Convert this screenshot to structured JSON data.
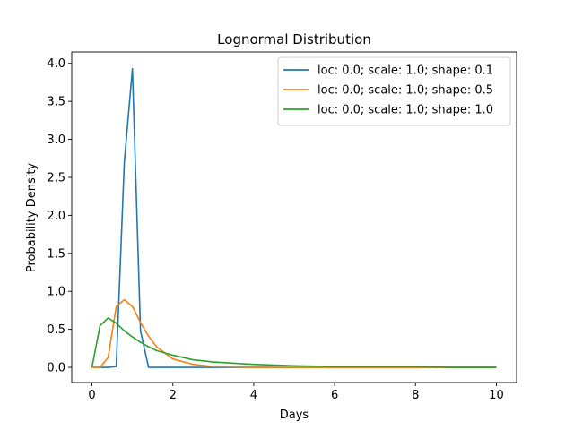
{
  "chart_data": {
    "type": "line",
    "title": "Lognormal Distribution",
    "xlabel": "Days",
    "ylabel": "Probability Density",
    "xlim": [
      -0.5,
      10.5
    ],
    "ylim": [
      -0.2,
      4.15
    ],
    "xticks": [
      0,
      2,
      4,
      6,
      8,
      10
    ],
    "yticks": [
      0.0,
      0.5,
      1.0,
      1.5,
      2.0,
      2.5,
      3.0,
      3.5,
      4.0
    ],
    "xtick_labels": [
      "0",
      "2",
      "4",
      "6",
      "8",
      "10"
    ],
    "ytick_labels": [
      "0.0",
      "0.5",
      "1.0",
      "1.5",
      "2.0",
      "2.5",
      "3.0",
      "3.5",
      "4.0"
    ],
    "grid": false,
    "legend_position": "top-right",
    "x": [
      0.0,
      0.2,
      0.4,
      0.6,
      0.8,
      1.0,
      1.2,
      1.4,
      1.6,
      2.0,
      2.5,
      3.0,
      4.0,
      5.0,
      6.0,
      7.0,
      8.0,
      9.0,
      10.0
    ],
    "series": [
      {
        "name": "loc: 0.0; scale: 1.0; shape: 0.1",
        "color": "#1f77b4",
        "values": [
          0.0,
          0.0,
          0.0,
          0.01,
          2.7,
          3.93,
          0.48,
          0.0,
          0.0,
          0.0,
          0.0,
          0.0,
          0.0,
          0.0,
          0.0,
          0.0,
          0.0,
          0.0,
          0.0
        ]
      },
      {
        "name": "loc: 0.0; scale: 1.0; shape: 0.5",
        "color": "#ff7f0e",
        "values": [
          0.0,
          0.0,
          0.13,
          0.8,
          0.89,
          0.8,
          0.59,
          0.41,
          0.27,
          0.11,
          0.04,
          0.01,
          0.0,
          0.0,
          0.0,
          0.0,
          0.0,
          0.0,
          0.0
        ]
      },
      {
        "name": "loc: 0.0; scale: 1.0; shape: 1.0",
        "color": "#2ca02c",
        "values": [
          0.0,
          0.55,
          0.65,
          0.58,
          0.48,
          0.4,
          0.33,
          0.27,
          0.22,
          0.16,
          0.1,
          0.07,
          0.04,
          0.02,
          0.01,
          0.01,
          0.01,
          0.0,
          0.0
        ]
      }
    ]
  }
}
